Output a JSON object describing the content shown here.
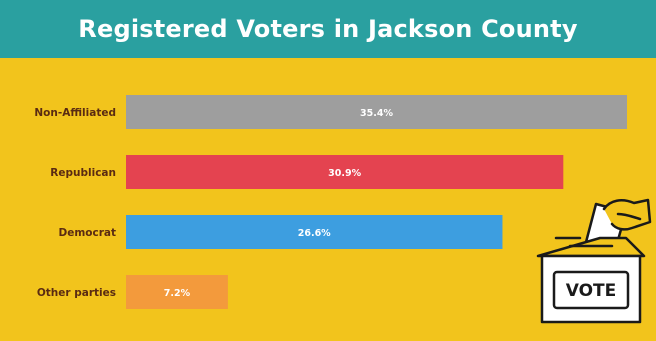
{
  "chart_data": {
    "type": "bar",
    "orientation": "horizontal",
    "title": "Registered Voters in Jackson County",
    "categories": [
      "Non-Affiliated",
      "Republican",
      "Democrat",
      "Other parties"
    ],
    "values": [
      35.4,
      30.9,
      26.6,
      7.2
    ],
    "value_labels": [
      "35.4%",
      "30.9%",
      "26.6%",
      "7.2%"
    ],
    "colors": [
      "#9e9e9e",
      "#e44350",
      "#3d9ee0",
      "#f39a3c"
    ],
    "unit": "%",
    "grid": false,
    "legend": "none"
  },
  "illustration": {
    "icon": "ballot-box-icon",
    "text": "VOTE"
  },
  "colors": {
    "background": "#f2c41c",
    "header": "#2aa0a0",
    "label": "#5a2b12"
  }
}
